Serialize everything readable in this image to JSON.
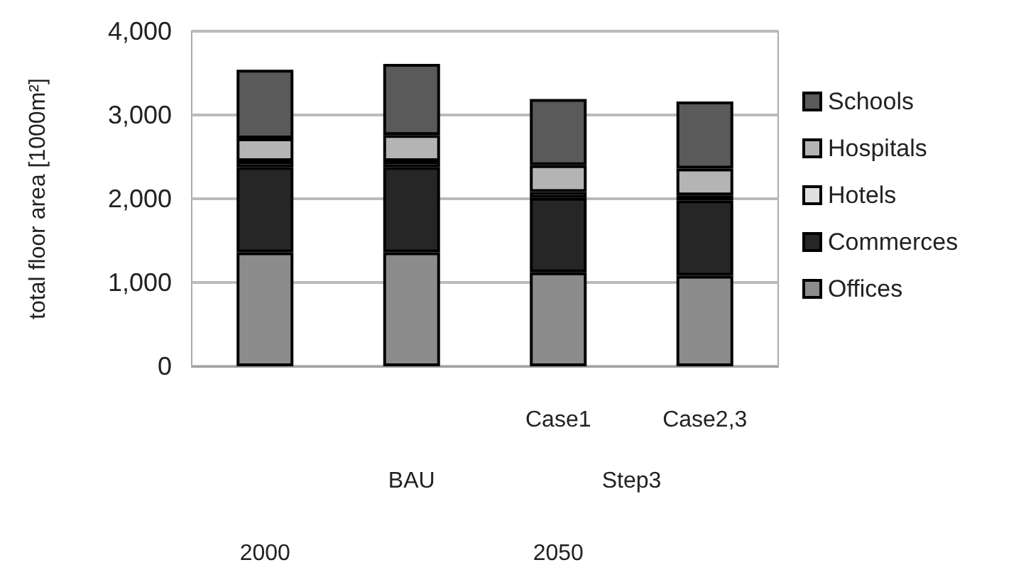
{
  "chart_data": {
    "type": "bar",
    "stacked": true,
    "ylabel": "total floor area [1000m²]",
    "categories": [
      null,
      null,
      "Case1",
      "Case2,3"
    ],
    "annotations": [
      "BAU",
      "Step3",
      "2000",
      "2050"
    ],
    "series": [
      {
        "name": "Offices",
        "color": "#8c8c8c",
        "values": [
          1360,
          1360,
          1120,
          1080
        ]
      },
      {
        "name": "Commerces",
        "color": "#262626",
        "values": [
          1020,
          1020,
          890,
          900
        ]
      },
      {
        "name": "Hotels",
        "color": "#e0e0e0",
        "values": [
          70,
          70,
          70,
          60
        ]
      },
      {
        "name": "Hospitals",
        "color": "#b4b4b4",
        "values": [
          270,
          310,
          320,
          320
        ]
      },
      {
        "name": "Schools",
        "color": "#5a5a5a",
        "values": [
          820,
          850,
          790,
          800
        ]
      }
    ],
    "ylim": [
      0,
      4000
    ],
    "yticks": [
      0,
      {
        "value": 1000,
        "label": "1,000"
      },
      {
        "value": 2000,
        "label": "2,000"
      },
      {
        "value": 3000,
        "label": "3,000"
      },
      {
        "value": 4000,
        "label": "4,000"
      }
    ],
    "grid": "y",
    "legend": "right"
  }
}
